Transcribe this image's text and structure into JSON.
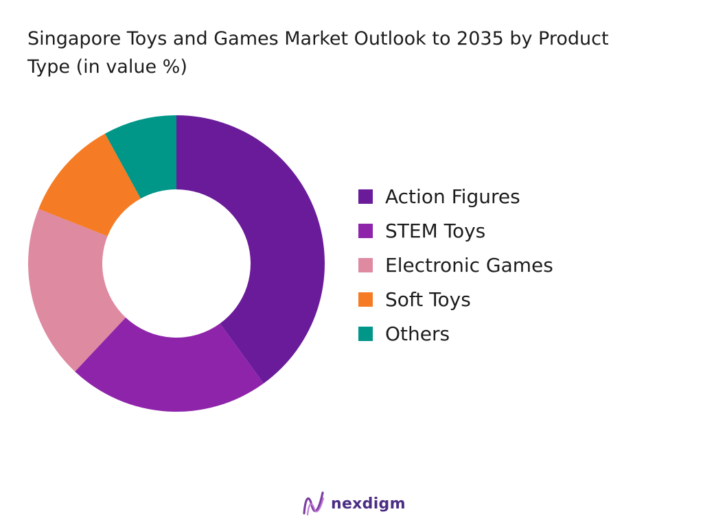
{
  "chart_data": {
    "type": "pie",
    "donut": true,
    "title": "Singapore Toys and Games Market Outlook to 2035 by Product Type (in value %)",
    "categories": [
      "Action Figures",
      "STEM Toys",
      "Electronic Games",
      "Soft Toys",
      "Others"
    ],
    "values": [
      40,
      22,
      19,
      11,
      8
    ],
    "colors": [
      "#6a1b9a",
      "#8e24aa",
      "#de8aa1",
      "#f57c25",
      "#009688"
    ],
    "legend_position": "right"
  },
  "brand": {
    "name": "nexdigm",
    "logo_icon": "nexdigm-logo-icon"
  }
}
